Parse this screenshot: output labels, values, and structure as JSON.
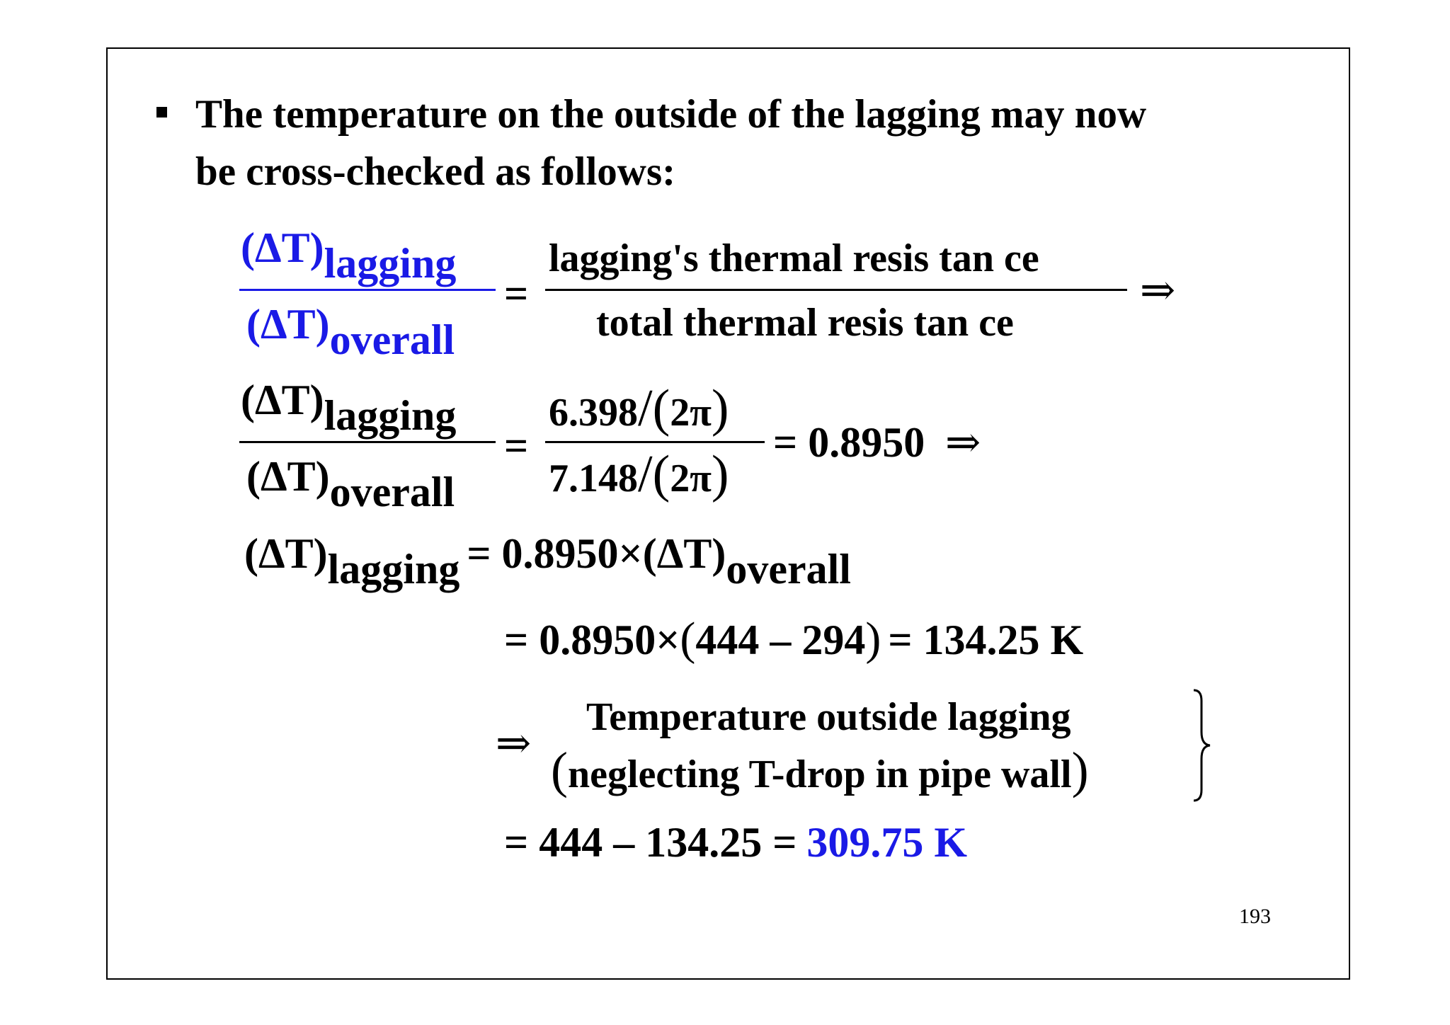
{
  "intro": {
    "line1": "The temperature on the outside of the lagging may now",
    "line2": "be cross-checked as follows:"
  },
  "eq1": {
    "lhs_num_sym": "(ΔT)",
    "lhs_num_sub": "lagging",
    "lhs_den_sym": "(ΔT)",
    "lhs_den_sub": "overall",
    "equals": "=",
    "rhs_num": "lagging's thermal resis tan ce",
    "rhs_den": "total thermal resis tan ce",
    "implies": "⇒"
  },
  "eq2": {
    "lhs_num_sym": "(ΔT)",
    "lhs_num_sub": "lagging",
    "lhs_den_sym": "(ΔT)",
    "lhs_den_sub": "overall",
    "equals": "=",
    "num_value": "6.398",
    "den_value": "7.148",
    "two_pi": "2π",
    "result": "= 0.8950",
    "implies": "⇒"
  },
  "eq3": {
    "lhs_sym": "(ΔT)",
    "lhs_sub": "lagging",
    "rhs_prefix": "= 0.8950×",
    "rhs_sym": "(ΔT)",
    "rhs_sub": "overall"
  },
  "eq4": {
    "prefix": "= 0.8950×",
    "inner": "444 – 294",
    "result": "= 134.25 K"
  },
  "eq5": {
    "implies": "⇒",
    "line1": "Temperature outside lagging",
    "line2": "neglecting T-drop in pipe wall"
  },
  "eq6": {
    "prefix": "= 444 – 134.25 =",
    "answer": "309.75 K"
  },
  "page_number": "193",
  "colors": {
    "highlight": "#1a1ae6",
    "text": "#000000"
  }
}
